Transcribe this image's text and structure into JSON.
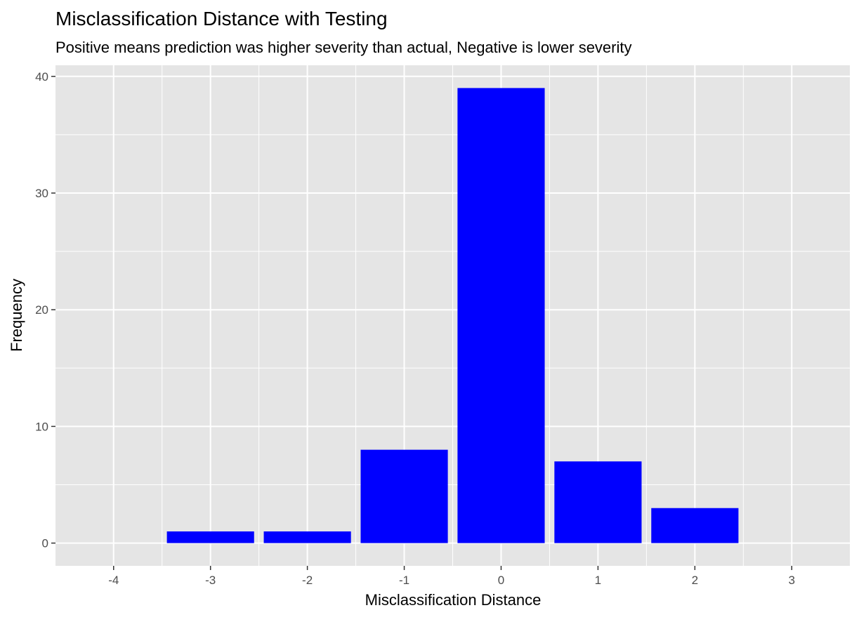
{
  "chart_data": {
    "type": "bar",
    "title": "Misclassification Distance with Testing",
    "subtitle": "Positive means prediction was higher severity than actual, Negative is lower severity",
    "xlabel": "Misclassification Distance",
    "ylabel": "Frequency",
    "x": [
      -3,
      -2,
      -1,
      0,
      1,
      2
    ],
    "values": [
      1,
      1,
      8,
      39,
      7,
      3
    ],
    "xlim": [
      -4.6,
      3.6
    ],
    "ylim": [
      -1.95,
      40.95
    ],
    "x_ticks": [
      -4,
      -3,
      -2,
      -1,
      0,
      1,
      2,
      3
    ],
    "y_ticks": [
      0,
      10,
      20,
      30,
      40
    ],
    "bar_width": 0.9,
    "bar_color": "#0000FF",
    "panel_background": "#E5E5E5",
    "grid_color": "#FFFFFF",
    "grid": true,
    "legend": "none"
  }
}
